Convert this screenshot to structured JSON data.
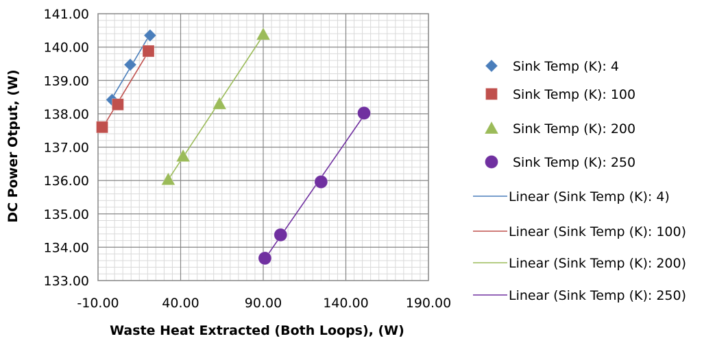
{
  "chart_data": {
    "type": "scatter",
    "xlabel": "Waste Heat Extracted (Both Loops), (W)",
    "ylabel": "DC Power Otput, (W)",
    "xlim": [
      -10,
      190
    ],
    "ylim": [
      133,
      141
    ],
    "x_ticks": [
      "-10.00",
      "40.00",
      "90.00",
      "140.00",
      "190.00"
    ],
    "y_ticks": [
      "133.00",
      "134.00",
      "135.00",
      "136.00",
      "137.00",
      "138.00",
      "139.00",
      "140.00",
      "141.00"
    ],
    "grid": true,
    "legend_position": "right",
    "series": [
      {
        "name": "Sink Temp (K): 4",
        "marker": "diamond",
        "color": "#4a7ebb",
        "x": [
          -1.5,
          9.5,
          21.5
        ],
        "y": [
          138.42,
          139.47,
          140.35
        ]
      },
      {
        "name": "Sink Temp (K): 100",
        "marker": "square",
        "color": "#c0504d",
        "x": [
          -7.5,
          2,
          20.5
        ],
        "y": [
          137.6,
          138.28,
          139.88
        ]
      },
      {
        "name": "Sink Temp (K): 200",
        "marker": "triangle",
        "color": "#9bbb59",
        "x": [
          32.5,
          41.5,
          63.5,
          90
        ],
        "y": [
          136.03,
          136.73,
          138.3,
          140.38
        ]
      },
      {
        "name": "Sink Temp (K): 250",
        "marker": "circle",
        "color": "#7030a0",
        "x": [
          91,
          100.5,
          125,
          151
        ],
        "y": [
          133.67,
          134.37,
          135.96,
          138.02
        ]
      }
    ],
    "trendlines": [
      {
        "name": "Linear (Sink Temp (K): 4)",
        "color": "#4a7ebb",
        "series": 0
      },
      {
        "name": "Linear (Sink Temp (K): 100)",
        "color": "#c0504d",
        "series": 1
      },
      {
        "name": "Linear (Sink Temp (K): 200)",
        "color": "#9bbb59",
        "series": 2
      },
      {
        "name": "Linear (Sink Temp (K): 250)",
        "color": "#7030a0",
        "series": 3
      }
    ]
  }
}
